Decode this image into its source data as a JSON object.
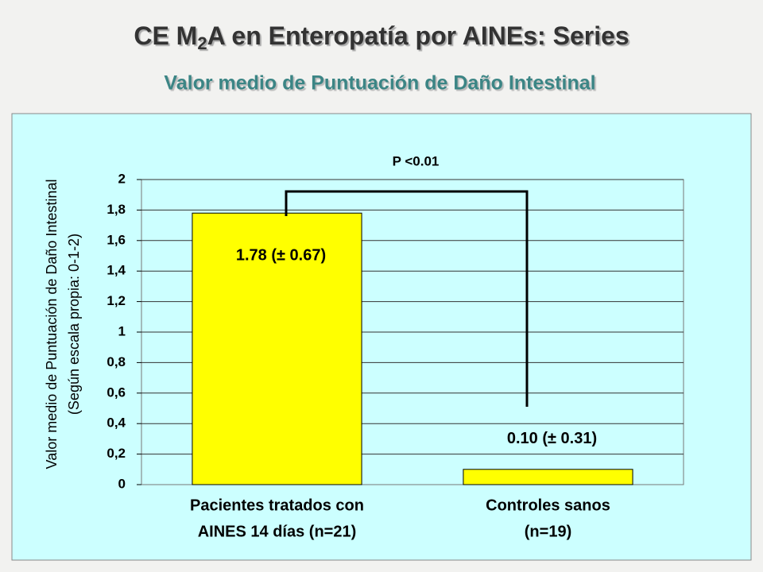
{
  "chart_data": {
    "type": "bar",
    "title": [
      "CE M",
      "2",
      "A en Enteropatía por AINEs: Series"
    ],
    "subtitle": "Valor medio de Puntuación de Daño Intestinal",
    "y_label": [
      "Valor medio de Puntuación de Daño Intestinal",
      "(Según escala propia: 0-1-2)"
    ],
    "categories": [
      [
        "Pacientes tratados con",
        "AINES 14 días (n=21)"
      ],
      [
        "Controles sanos",
        "(n=19)"
      ]
    ],
    "values": [
      1.78,
      0.1
    ],
    "value_labels": [
      "1.78 (± 0.67)",
      "0.10 (± 0.31)"
    ],
    "annotation": "P <0.01",
    "color": "#ffff00",
    "ylim": [
      0,
      2
    ],
    "yticks": [
      0,
      {
        "value": 0.2,
        "label": "0,2"
      },
      {
        "value": 0.4,
        "label": "0,4"
      },
      {
        "value": 0.6,
        "label": "0,6"
      },
      {
        "value": 0.8,
        "label": "0,8"
      },
      1,
      {
        "value": 1.2,
        "label": "1,2"
      },
      {
        "value": 1.4,
        "label": "1,4"
      },
      {
        "value": 1.6,
        "label": "1,6"
      },
      {
        "value": 1.8,
        "label": "1,8"
      },
      2
    ],
    "grid": true
  }
}
